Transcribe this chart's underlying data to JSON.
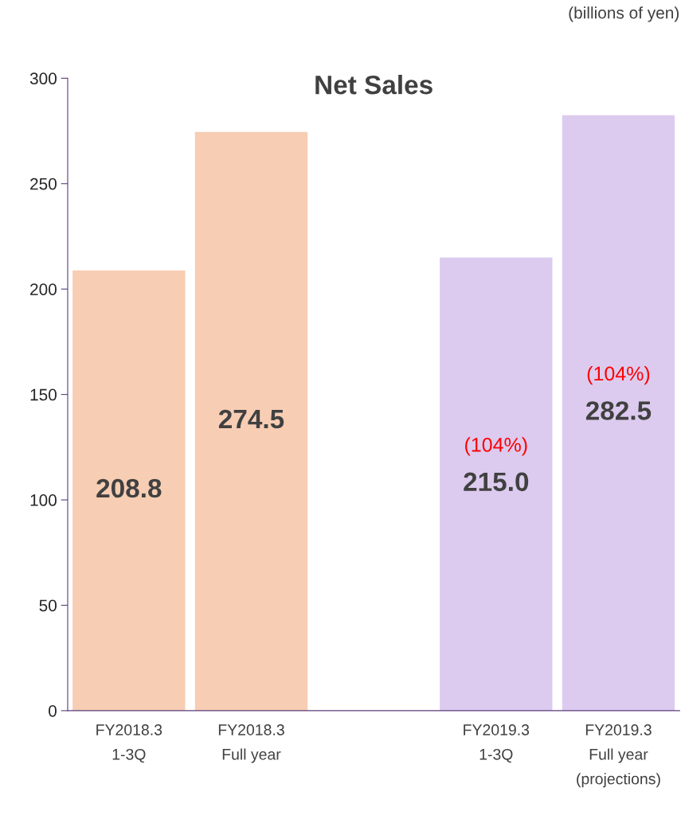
{
  "chart_data": {
    "type": "bar",
    "title": "Net Sales",
    "categories": [
      "FY2018.3\n1-3Q",
      "FY2018.3\nFull year",
      null,
      "FY2019.3\n1-3Q",
      "FY2019.3\nFull year\n(projections)"
    ],
    "values": [
      208.8,
      274.5,
      null,
      215.0,
      282.5
    ],
    "colors": [
      "#f7cdb4",
      "#f7cdb4",
      null,
      "#dccbef",
      "#dccbef"
    ],
    "value_labels": [
      "208.8",
      "274.5",
      null,
      "215.0",
      "282.5"
    ],
    "ylim": [
      0,
      300
    ],
    "yticks": [
      0,
      50,
      100,
      150,
      200,
      250,
      300
    ],
    "grid": false,
    "annotations": [
      "(billions of yen)",
      "(104%)",
      "(104%)"
    ]
  }
}
